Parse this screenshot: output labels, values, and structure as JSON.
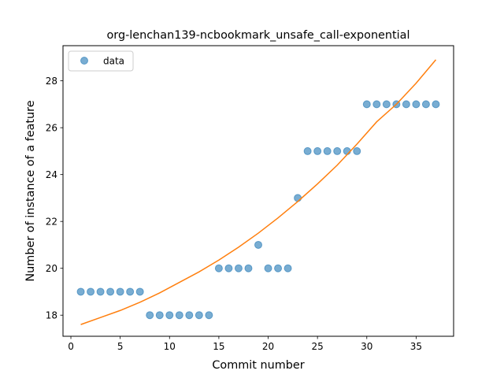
{
  "chart_data": {
    "type": "scatter",
    "title": "org-lenchan139-ncbookmark_unsafe_call-exponential",
    "xlabel": "Commit number",
    "ylabel": "Number of instance of a feature",
    "xlim": [
      -0.8,
      38.8
    ],
    "ylim": [
      17.1,
      29.5
    ],
    "xticks": [
      0,
      5,
      10,
      15,
      20,
      25,
      30,
      35
    ],
    "yticks": [
      18,
      20,
      22,
      24,
      26,
      28
    ],
    "grid": false,
    "legend": {
      "position": "top-left",
      "entries": [
        "data"
      ]
    },
    "series": [
      {
        "name": "data",
        "kind": "scatter",
        "color": "#1f77b4",
        "x": [
          1,
          2,
          3,
          4,
          5,
          6,
          7,
          8,
          9,
          10,
          11,
          12,
          13,
          14,
          15,
          16,
          17,
          18,
          19,
          20,
          21,
          22,
          23,
          24,
          25,
          26,
          27,
          28,
          29,
          30,
          31,
          32,
          33,
          34,
          35,
          36,
          37
        ],
        "y": [
          19,
          19,
          19,
          19,
          19,
          19,
          19,
          18,
          18,
          18,
          18,
          18,
          18,
          18,
          20,
          20,
          20,
          20,
          21,
          20,
          20,
          20,
          23,
          25,
          25,
          25,
          25,
          25,
          25,
          27,
          27,
          27,
          27,
          27,
          27,
          27,
          27
        ]
      },
      {
        "kind": "line",
        "color": "#ff7f0e",
        "x": [
          1,
          3,
          5,
          7,
          9,
          11,
          13,
          15,
          17,
          19,
          21,
          23,
          25,
          27,
          29,
          31,
          33,
          35,
          37
        ],
        "y": [
          17.6,
          17.9,
          18.2,
          18.55,
          18.95,
          19.4,
          19.85,
          20.35,
          20.9,
          21.5,
          22.15,
          22.85,
          23.6,
          24.4,
          25.3,
          26.25,
          27.0,
          27.9,
          28.9
        ]
      }
    ]
  }
}
